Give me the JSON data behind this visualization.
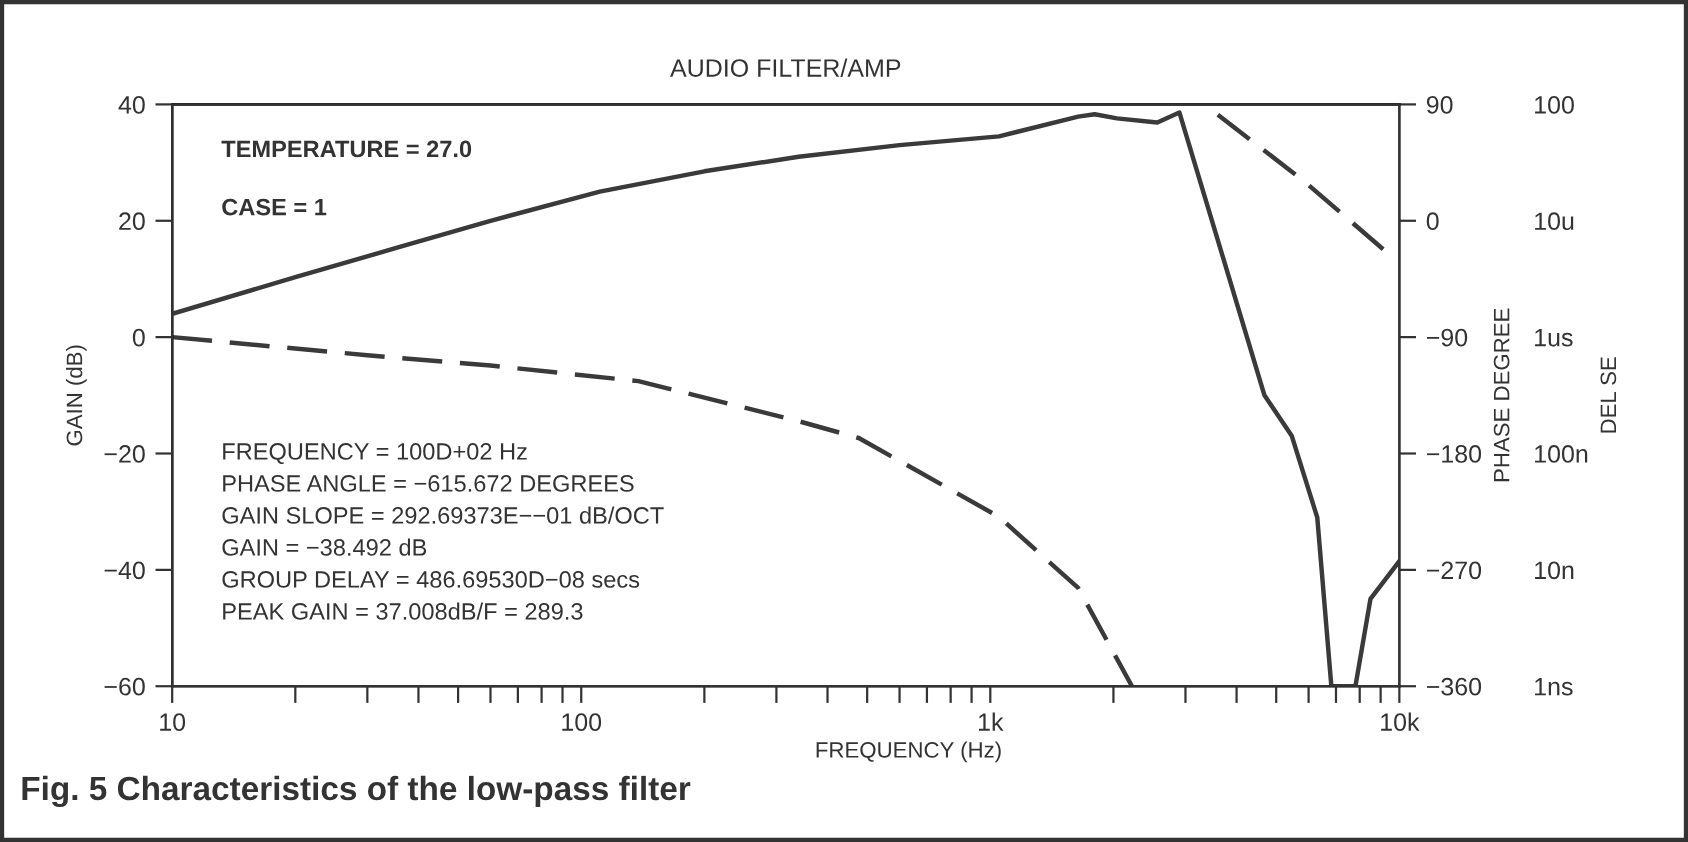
{
  "chart_data": {
    "type": "line",
    "title": "AUDIO FILTER/AMP",
    "xlabel": "FREQUENCY (Hz)",
    "ylabel": "GAIN (dB)",
    "y2label": "PHASE DEGREE",
    "y3label": "DEL SE",
    "log": "x",
    "grid": false,
    "legend": false,
    "marker": "none",
    "xlim": [
      10,
      10000
    ],
    "xticks": [
      {
        "value": 10,
        "label": "10"
      },
      {
        "value": 20,
        "label": null
      },
      {
        "value": 30,
        "label": null
      },
      {
        "value": 40,
        "label": null
      },
      {
        "value": 50,
        "label": null
      },
      {
        "value": 60,
        "label": null
      },
      {
        "value": 70,
        "label": null
      },
      {
        "value": 80,
        "label": null
      },
      {
        "value": 90,
        "label": null
      },
      {
        "value": 100,
        "label": "100"
      },
      {
        "value": 200,
        "label": null
      },
      {
        "value": 300,
        "label": null
      },
      {
        "value": 400,
        "label": null
      },
      {
        "value": 500,
        "label": null
      },
      {
        "value": 600,
        "label": null
      },
      {
        "value": 700,
        "label": null
      },
      {
        "value": 800,
        "label": null
      },
      {
        "value": 900,
        "label": null
      },
      {
        "value": 1000,
        "label": "1k"
      },
      {
        "value": 2000,
        "label": null
      },
      {
        "value": 3000,
        "label": null
      },
      {
        "value": 4000,
        "label": null
      },
      {
        "value": 5000,
        "label": null
      },
      {
        "value": 6000,
        "label": null
      },
      {
        "value": 7000,
        "label": null
      },
      {
        "value": 8000,
        "label": null
      },
      {
        "value": 9000,
        "label": null
      },
      {
        "value": 10000,
        "label": "10k"
      }
    ],
    "ylim": [
      -60,
      40
    ],
    "yticks": [
      {
        "value": 40,
        "label": "40"
      },
      {
        "value": 20,
        "label": "20"
      },
      {
        "value": 0,
        "label": "0"
      },
      {
        "value": -20,
        "label": "−20"
      },
      {
        "value": -40,
        "label": "−40"
      },
      {
        "value": -60,
        "label": "−60"
      }
    ],
    "y2lim": [
      -360,
      90
    ],
    "y2ticks": [
      {
        "value": 90,
        "label": "90"
      },
      {
        "value": 0,
        "label": "0"
      },
      {
        "value": -90,
        "label": "−90"
      },
      {
        "value": -180,
        "label": "−180"
      },
      {
        "value": -270,
        "label": "−270"
      },
      {
        "value": -360,
        "label": "−360"
      }
    ],
    "series": [
      {
        "color": "#3a3a3a",
        "line_style": "solid",
        "x": [
          10,
          20,
          36,
          60,
          111,
          200,
          340,
          600,
          1050,
          1640,
          1800,
          2040,
          2560,
          2900,
          4680,
          5460,
          6300,
          6820,
          7810,
          8500,
          10000
        ],
        "values": [
          4,
          10.3,
          15.5,
          20,
          25,
          28.5,
          31,
          33,
          34.5,
          37.9,
          38.3,
          37.6,
          36.9,
          38.6,
          -10,
          -17,
          -31,
          -60,
          -60,
          -45,
          -38.5
        ]
      },
      {
        "color": "#3a3a3a",
        "line_style": "dashed",
        "axis": "y2",
        "x": [
          10,
          30,
          60,
          138,
          340,
          477,
          1050,
          1640,
          2220,
          2900,
          3600,
          5830,
          9130
        ],
        "values": [
          -90,
          -104,
          -112,
          -124,
          -155,
          -168,
          -229,
          -284,
          -360,
          null,
          82,
          31,
          -22
        ]
      }
    ],
    "annotations": [
      "TEMPERATURE = 27.0",
      "CASE = 1",
      "FREQUENCY = 100D+02 Hz",
      "PHASE ANGLE = −615.672 DEGREES",
      "GAIN SLOPE = 292.69373E−−01 dB/OCT",
      "GAIN = −38.492 dB",
      "GROUP DELAY = 486.69530D−08 secs",
      "PEAK GAIN = 37.008dB/F = 289.3",
      "Fig. 5 Characteristics of the low-pass filter",
      "100",
      "10u",
      "1us",
      "100n",
      "10n",
      "1ns"
    ]
  }
}
